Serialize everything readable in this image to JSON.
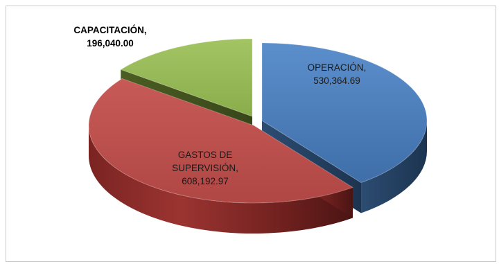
{
  "chart_data": {
    "type": "pie",
    "style": "3d-exploded",
    "slices": [
      {
        "label": "OPERACIÓN",
        "value": 530364.69,
        "value_text": "530,364.69",
        "color": "#4f81bd"
      },
      {
        "label": "GASTOS DE SUPERVISIÓN",
        "value": 608192.97,
        "value_text": "608,192.97",
        "color": "#c0504d"
      },
      {
        "label": "CAPACITACIÓN",
        "value": 196040.0,
        "value_text": "196,040.00",
        "color": "#9bbb59"
      }
    ],
    "data_labels": [
      {
        "lines": [
          "OPERACIÓN,",
          "530,364.69"
        ],
        "bold": false
      },
      {
        "lines": [
          "GASTOS DE",
          "SUPERVISIÓN,",
          "608,192.97"
        ],
        "bold": false
      },
      {
        "lines": [
          "CAPACITACIÓN,",
          "196,040.00"
        ],
        "bold": true
      }
    ]
  }
}
